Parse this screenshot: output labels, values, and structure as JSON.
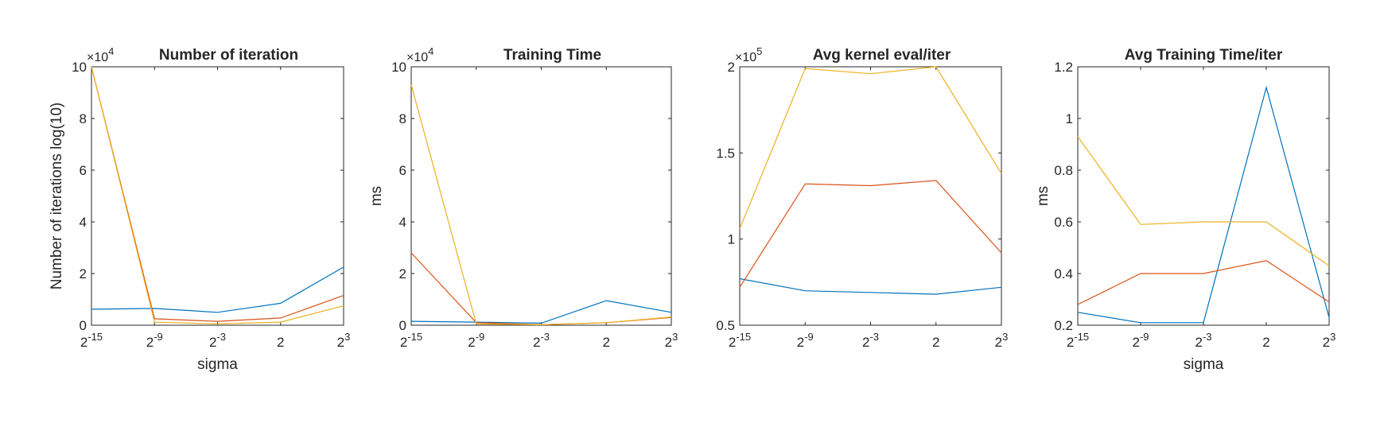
{
  "chart_data": [
    {
      "type": "line",
      "title": "Number of iteration",
      "xlabel": "sigma",
      "ylabel": "Number of iterations log(10)",
      "x": [
        "2^-15",
        "2^-9",
        "2^-3",
        "2",
        "2^3"
      ],
      "xtick_labels": [
        {
          "base": "2",
          "exp": "-15"
        },
        {
          "base": "2",
          "exp": "-9"
        },
        {
          "base": "2",
          "exp": "-3"
        },
        {
          "base": "2",
          "exp": ""
        },
        {
          "base": "2",
          "exp": "3"
        }
      ],
      "ylim": [
        0,
        10
      ],
      "yticks": [
        0,
        2,
        4,
        6,
        8,
        10
      ],
      "ytick_labels": [
        "0",
        "2",
        "4",
        "6",
        "8",
        "10"
      ],
      "multiplier": {
        "base": "×10",
        "exp": "4"
      },
      "series": [
        {
          "color": "#0072BD",
          "values": [
            0.62,
            0.65,
            0.5,
            0.85,
            2.25
          ]
        },
        {
          "color": "#D95319",
          "values": [
            10,
            0.25,
            0.15,
            0.28,
            1.15
          ]
        },
        {
          "color": "#EDB120",
          "values": [
            10,
            0.12,
            0.05,
            0.12,
            0.75
          ]
        }
      ]
    },
    {
      "type": "line",
      "title": "Training Time",
      "xlabel": "",
      "ylabel": "ms",
      "x": [
        "2^-15",
        "2^-9",
        "2^-3",
        "2",
        "2^3"
      ],
      "xtick_labels": [
        {
          "base": "2",
          "exp": "-15"
        },
        {
          "base": "2",
          "exp": "-9"
        },
        {
          "base": "2",
          "exp": "-3"
        },
        {
          "base": "2",
          "exp": ""
        },
        {
          "base": "2",
          "exp": "3"
        }
      ],
      "ylim": [
        0,
        10
      ],
      "yticks": [
        0,
        2,
        4,
        6,
        8,
        10
      ],
      "ytick_labels": [
        "0",
        "2",
        "4",
        "6",
        "8",
        "10"
      ],
      "multiplier": {
        "base": "×10",
        "exp": "4"
      },
      "series": [
        {
          "color": "#0072BD",
          "values": [
            0.15,
            0.12,
            0.08,
            0.95,
            0.5
          ]
        },
        {
          "color": "#D95319",
          "values": [
            2.8,
            0.1,
            0.02,
            0.1,
            0.3
          ]
        },
        {
          "color": "#EDB120",
          "values": [
            9.3,
            0.05,
            0.02,
            0.1,
            0.32
          ]
        }
      ]
    },
    {
      "type": "line",
      "title": "Avg kernel eval/iter",
      "xlabel": "",
      "ylabel": "",
      "x": [
        "2^-15",
        "2^-9",
        "2^-3",
        "2",
        "2^3"
      ],
      "xtick_labels": [
        {
          "base": "2",
          "exp": "-15"
        },
        {
          "base": "2",
          "exp": "-9"
        },
        {
          "base": "2",
          "exp": "-3"
        },
        {
          "base": "2",
          "exp": ""
        },
        {
          "base": "2",
          "exp": "3"
        }
      ],
      "ylim": [
        0.5,
        2.0
      ],
      "yticks": [
        0.5,
        1,
        1.5,
        2
      ],
      "ytick_labels": [
        "0.5",
        "1",
        "1.5",
        "2"
      ],
      "multiplier": {
        "base": "×10",
        "exp": "5"
      },
      "series": [
        {
          "color": "#0072BD",
          "values": [
            0.77,
            0.7,
            0.69,
            0.68,
            0.72
          ]
        },
        {
          "color": "#D95319",
          "values": [
            0.72,
            1.32,
            1.31,
            1.34,
            0.92
          ]
        },
        {
          "color": "#EDB120",
          "values": [
            1.06,
            1.99,
            1.96,
            2.0,
            1.38
          ]
        }
      ]
    },
    {
      "type": "line",
      "title": "Avg Training Time/iter",
      "xlabel": "sigma",
      "ylabel": "ms",
      "x": [
        "2^-15",
        "2^-9",
        "2^-3",
        "2",
        "2^3"
      ],
      "xtick_labels": [
        {
          "base": "2",
          "exp": "-15"
        },
        {
          "base": "2",
          "exp": "-9"
        },
        {
          "base": "2",
          "exp": "-3"
        },
        {
          "base": "2",
          "exp": ""
        },
        {
          "base": "2",
          "exp": "3"
        }
      ],
      "ylim": [
        0.2,
        1.2
      ],
      "yticks": [
        0.2,
        0.4,
        0.6,
        0.8,
        1,
        1.2
      ],
      "ytick_labels": [
        "0.2",
        "0.4",
        "0.6",
        "0.8",
        "1",
        "1.2"
      ],
      "multiplier": null,
      "series": [
        {
          "color": "#0072BD",
          "values": [
            0.25,
            0.21,
            0.21,
            1.12,
            0.23
          ]
        },
        {
          "color": "#D95319",
          "values": [
            0.28,
            0.4,
            0.4,
            0.45,
            0.29
          ]
        },
        {
          "color": "#EDB120",
          "values": [
            0.93,
            0.59,
            0.6,
            0.6,
            0.43
          ]
        }
      ]
    }
  ]
}
